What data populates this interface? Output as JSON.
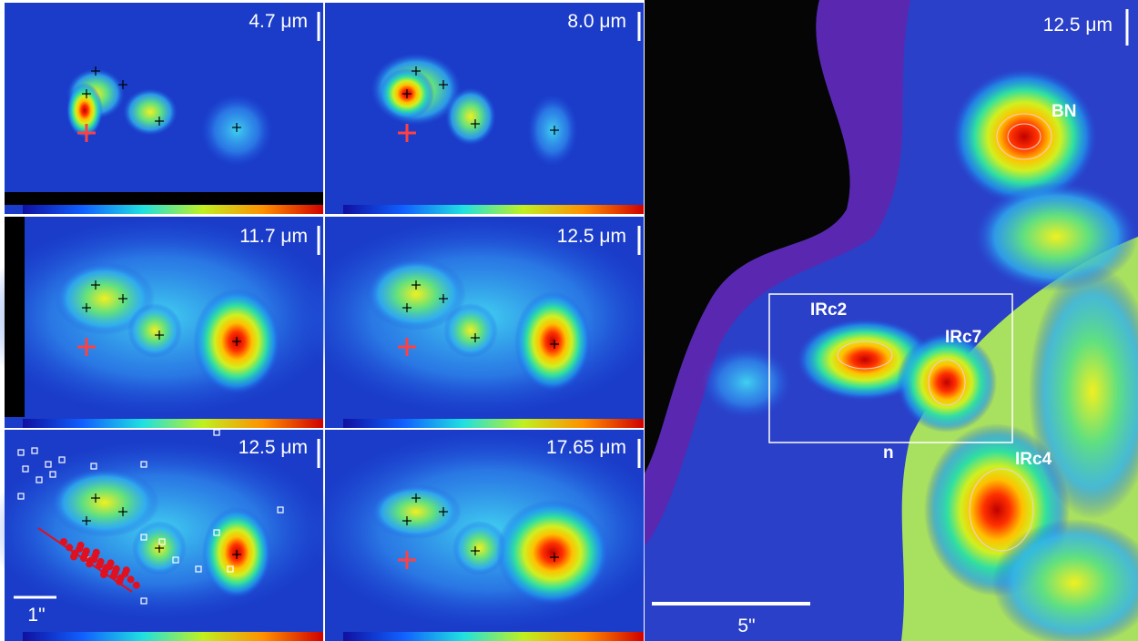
{
  "panels": [
    {
      "label": "4.7 μm"
    },
    {
      "label": "8.0 μm"
    },
    {
      "label": "11.7 μm"
    },
    {
      "label": "12.5 μm"
    },
    {
      "label": "12.5 μm",
      "scale_label": "1\""
    },
    {
      "label": "17.65 μm"
    }
  ],
  "main_panel": {
    "label": "12.5 μm",
    "sources": [
      "BN",
      "IRc2",
      "IRc7",
      "n",
      "IRc4"
    ],
    "scale_label": "5\""
  }
}
